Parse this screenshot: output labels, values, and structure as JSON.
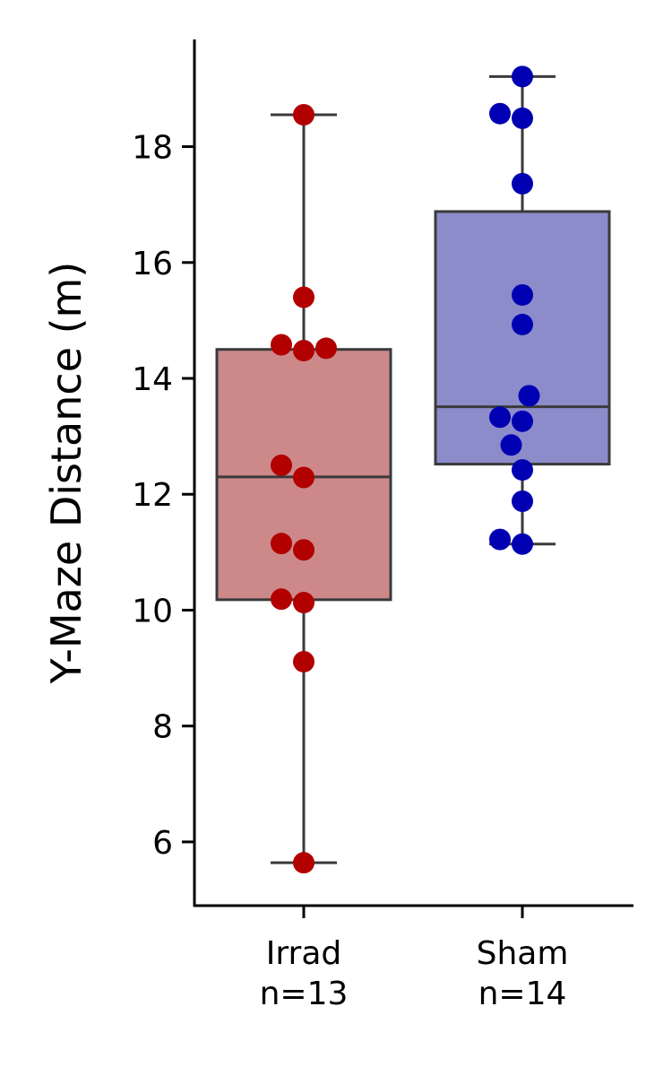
{
  "chart_data": {
    "type": "box",
    "title": "",
    "xlabel": "",
    "ylabel": "Y-Maze Distance (m)",
    "ylim": [
      4.9,
      19.85
    ],
    "y_ticks": [
      6,
      8,
      10,
      12,
      14,
      16,
      18
    ],
    "grid": false,
    "legend": "none",
    "categories": [
      "Irrad\nn=13",
      "Sham\nn=14"
    ],
    "category_lines": [
      [
        "Irrad",
        "n=13"
      ],
      [
        "Sham",
        "n=14"
      ]
    ],
    "boxes": [
      {
        "name": "Irrad",
        "whisker_low": 5.64,
        "q1": 10.18,
        "median": 12.3,
        "q3": 14.5,
        "whisker_high": 18.55,
        "box_color": "#cd898a",
        "point_color": "#b20000",
        "points": [
          {
            "value": 18.55,
            "offset": 0
          },
          {
            "value": 15.4,
            "offset": 0
          },
          {
            "value": 14.58,
            "offset": -1
          },
          {
            "value": 14.48,
            "offset": 0
          },
          {
            "value": 14.52,
            "offset": 1
          },
          {
            "value": 12.5,
            "offset": -1
          },
          {
            "value": 12.29,
            "offset": 0
          },
          {
            "value": 11.15,
            "offset": -1
          },
          {
            "value": 11.04,
            "offset": 0
          },
          {
            "value": 10.19,
            "offset": -1
          },
          {
            "value": 10.13,
            "offset": 0
          },
          {
            "value": 9.11,
            "offset": 0
          },
          {
            "value": 5.64,
            "offset": 0
          }
        ]
      },
      {
        "name": "Sham",
        "whisker_low": 11.14,
        "q1": 12.52,
        "median": 13.51,
        "q3": 16.88,
        "whisker_high": 19.21,
        "box_color": "#8c8ccb",
        "point_color": "#0000b2",
        "points": [
          {
            "value": 19.21,
            "offset": 0
          },
          {
            "value": 18.57,
            "offset": -1
          },
          {
            "value": 18.49,
            "offset": 0
          },
          {
            "value": 17.36,
            "offset": 0
          },
          {
            "value": 15.44,
            "offset": 0
          },
          {
            "value": 14.93,
            "offset": 0
          },
          {
            "value": 13.7,
            "offset": 0.3
          },
          {
            "value": 13.33,
            "offset": -1
          },
          {
            "value": 13.26,
            "offset": 0
          },
          {
            "value": 12.85,
            "offset": -0.5
          },
          {
            "value": 12.42,
            "offset": 0
          },
          {
            "value": 11.88,
            "offset": 0
          },
          {
            "value": 11.22,
            "offset": -1
          },
          {
            "value": 11.14,
            "offset": 0
          }
        ]
      }
    ]
  }
}
